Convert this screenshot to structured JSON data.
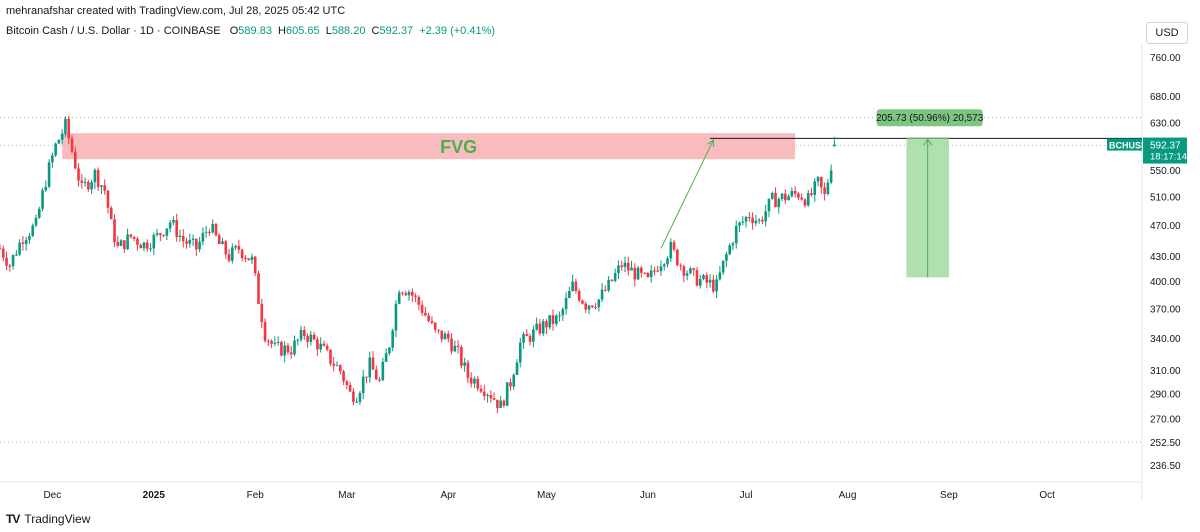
{
  "header": {
    "credit": "mehranafshar created with TradingView.com, Jul 28, 2025 05:42 UTC"
  },
  "legend": {
    "symbol": "Bitcoin Cash / U.S. Dollar · 1D · COINBASE",
    "open_label": "O",
    "open": "589.83",
    "high_label": "H",
    "high": "605.65",
    "low_label": "L",
    "low": "588.20",
    "close_label": "C",
    "close": "592.37",
    "change": "+2.39 (+0.41%)"
  },
  "currency": "USD",
  "footer": {
    "brand": "TradingView",
    "logo_glyph": "TV"
  },
  "colors": {
    "up": "#089981",
    "down": "#f23645",
    "fvg_fill": "#f7b0b4",
    "fvg_text": "#4caf50",
    "measure_fill": "#8fd18f",
    "measure_label_bg": "#7fc47f",
    "price_badge": "#089981"
  },
  "chart_data": {
    "type": "candlestick",
    "symbol": "BCHUSD",
    "timeframe": "1D",
    "y_scale": "log",
    "ylim": [
      230,
      790
    ],
    "y_ticks": [
      760,
      680,
      630,
      590,
      550,
      510,
      470,
      430,
      400,
      370,
      340,
      310,
      290,
      270,
      252.5,
      236.5
    ],
    "y_tick_labels": [
      "760.00",
      "680.00",
      "630.00",
      "",
      "550.00",
      "510.00",
      "470.00",
      "430.00",
      "400.00",
      "370.00",
      "340.00",
      "310.00",
      "290.00",
      "270.00",
      "252.50",
      "236.50"
    ],
    "x_start": "2024-11-15",
    "x_end": "2025-10-30",
    "x_ticks": [
      {
        "date": "2024-12-01",
        "label": "Dec"
      },
      {
        "date": "2025-01-01",
        "label": "2025"
      },
      {
        "date": "2025-02-01",
        "label": "Feb"
      },
      {
        "date": "2025-03-01",
        "label": "Mar"
      },
      {
        "date": "2025-04-01",
        "label": "Apr"
      },
      {
        "date": "2025-05-01",
        "label": "May"
      },
      {
        "date": "2025-06-01",
        "label": "Jun"
      },
      {
        "date": "2025-07-01",
        "label": "Jul"
      },
      {
        "date": "2025-08-01",
        "label": "Aug"
      },
      {
        "date": "2025-09-01",
        "label": "Sep"
      },
      {
        "date": "2025-10-01",
        "label": "Oct"
      }
    ],
    "last_price": {
      "value": 592.37,
      "label": "592.37",
      "symbol": "BCHUSD",
      "countdown": "18:17:14"
    },
    "dotted_levels": [
      640,
      591,
      252.5
    ],
    "horizontal_line": {
      "value": 603,
      "from": "2025-06-20",
      "to": "2025-10-30"
    },
    "fvg_zone": {
      "label": "FVG",
      "top": 612,
      "bottom": 568,
      "from": "2024-12-04",
      "to": "2025-07-16"
    },
    "measure": {
      "label": "205.73 (50.96%) 20,573",
      "from": "2025-08-19",
      "to": "2025-09-01",
      "top": 605,
      "bottom": 405
    },
    "arrow": {
      "from_date": "2025-06-05",
      "from_value": 440,
      "to_date": "2025-06-21",
      "to_value": 600
    },
    "price_path": [
      {
        "date": "2024-11-15",
        "value": 440
      },
      {
        "date": "2024-11-18",
        "value": 420
      },
      {
        "date": "2024-11-22",
        "value": 455
      },
      {
        "date": "2024-11-26",
        "value": 470
      },
      {
        "date": "2024-11-29",
        "value": 535
      },
      {
        "date": "2024-12-02",
        "value": 590
      },
      {
        "date": "2024-12-05",
        "value": 625
      },
      {
        "date": "2024-12-08",
        "value": 560
      },
      {
        "date": "2024-12-10",
        "value": 520
      },
      {
        "date": "2024-12-14",
        "value": 545
      },
      {
        "date": "2024-12-17",
        "value": 520
      },
      {
        "date": "2024-12-19",
        "value": 470
      },
      {
        "date": "2024-12-21",
        "value": 440
      },
      {
        "date": "2024-12-25",
        "value": 455
      },
      {
        "date": "2024-12-29",
        "value": 445
      },
      {
        "date": "2025-01-02",
        "value": 455
      },
      {
        "date": "2025-01-06",
        "value": 475
      },
      {
        "date": "2025-01-10",
        "value": 450
      },
      {
        "date": "2025-01-14",
        "value": 440
      },
      {
        "date": "2025-01-18",
        "value": 470
      },
      {
        "date": "2025-01-21",
        "value": 445
      },
      {
        "date": "2025-01-24",
        "value": 430
      },
      {
        "date": "2025-01-27",
        "value": 440
      },
      {
        "date": "2025-01-31",
        "value": 425
      },
      {
        "date": "2025-02-02",
        "value": 380
      },
      {
        "date": "2025-02-04",
        "value": 345
      },
      {
        "date": "2025-02-07",
        "value": 330
      },
      {
        "date": "2025-02-12",
        "value": 330
      },
      {
        "date": "2025-02-16",
        "value": 345
      },
      {
        "date": "2025-02-20",
        "value": 335
      },
      {
        "date": "2025-02-24",
        "value": 320
      },
      {
        "date": "2025-02-27",
        "value": 310
      },
      {
        "date": "2025-03-02",
        "value": 290
      },
      {
        "date": "2025-03-04",
        "value": 290
      },
      {
        "date": "2025-03-08",
        "value": 315
      },
      {
        "date": "2025-03-11",
        "value": 300
      },
      {
        "date": "2025-03-14",
        "value": 335
      },
      {
        "date": "2025-03-17",
        "value": 395
      },
      {
        "date": "2025-03-20",
        "value": 390
      },
      {
        "date": "2025-03-24",
        "value": 370
      },
      {
        "date": "2025-03-28",
        "value": 345
      },
      {
        "date": "2025-04-01",
        "value": 340
      },
      {
        "date": "2025-04-04",
        "value": 325
      },
      {
        "date": "2025-04-07",
        "value": 305
      },
      {
        "date": "2025-04-10",
        "value": 300
      },
      {
        "date": "2025-04-14",
        "value": 290
      },
      {
        "date": "2025-04-17",
        "value": 280
      },
      {
        "date": "2025-04-20",
        "value": 300
      },
      {
        "date": "2025-04-23",
        "value": 335
      },
      {
        "date": "2025-04-27",
        "value": 345
      },
      {
        "date": "2025-05-01",
        "value": 355
      },
      {
        "date": "2025-05-05",
        "value": 360
      },
      {
        "date": "2025-05-09",
        "value": 395
      },
      {
        "date": "2025-05-13",
        "value": 375
      },
      {
        "date": "2025-05-17",
        "value": 380
      },
      {
        "date": "2025-05-20",
        "value": 395
      },
      {
        "date": "2025-05-24",
        "value": 420
      },
      {
        "date": "2025-05-28",
        "value": 410
      },
      {
        "date": "2025-06-01",
        "value": 400
      },
      {
        "date": "2025-06-04",
        "value": 420
      },
      {
        "date": "2025-06-08",
        "value": 440
      },
      {
        "date": "2025-06-11",
        "value": 420
      },
      {
        "date": "2025-06-15",
        "value": 405
      },
      {
        "date": "2025-06-18",
        "value": 400
      },
      {
        "date": "2025-06-22",
        "value": 395
      },
      {
        "date": "2025-06-24",
        "value": 420
      },
      {
        "date": "2025-06-28",
        "value": 465
      },
      {
        "date": "2025-07-02",
        "value": 485
      },
      {
        "date": "2025-07-05",
        "value": 475
      },
      {
        "date": "2025-07-09",
        "value": 505
      },
      {
        "date": "2025-07-13",
        "value": 510
      },
      {
        "date": "2025-07-17",
        "value": 515
      },
      {
        "date": "2025-07-20",
        "value": 505
      },
      {
        "date": "2025-07-23",
        "value": 530
      },
      {
        "date": "2025-07-25",
        "value": 510
      },
      {
        "date": "2025-07-27",
        "value": 560
      },
      {
        "date": "2025-07-28",
        "value": 592
      }
    ]
  }
}
